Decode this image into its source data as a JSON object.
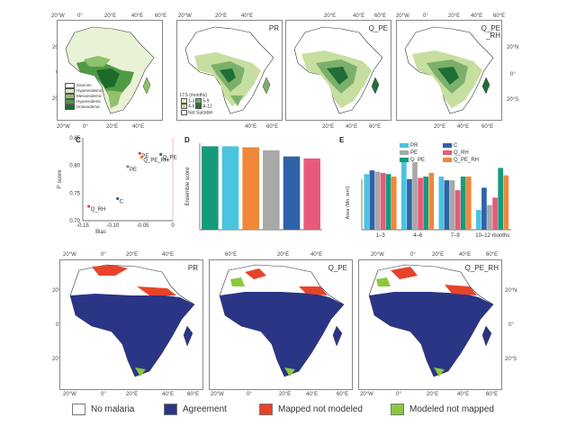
{
  "panels": {
    "a": {
      "letter": "A"
    },
    "b": {
      "letter": "B",
      "label": "PR"
    },
    "b2": {
      "label": "Q_PE"
    },
    "b3": {
      "label": "Q_PE\n_RH"
    },
    "c": {
      "letter": "C"
    },
    "d": {
      "letter": "D"
    },
    "e": {
      "letter": "E"
    },
    "f": {
      "letter": "F",
      "label": "PR"
    },
    "f2": {
      "label": "Q_PE"
    },
    "f3": {
      "label": "Q_PE_RH"
    }
  },
  "coords": {
    "top_lon": [
      "20°W",
      "0°",
      "20°E",
      "40°E",
      "60°E"
    ],
    "top_lon_bottom": [
      "20°W",
      "0°",
      "20°E",
      "40°E",
      "60°E"
    ],
    "lat": [
      "20°N",
      "0°",
      "20°S"
    ],
    "f_lon": [
      "20°W",
      "0°",
      "20°E",
      "40°E",
      "60°E"
    ],
    "f_lon2": [
      "20°E",
      "40°E"
    ],
    "f_lat": [
      "20°N",
      "0°",
      "20°S"
    ]
  },
  "legend_a": {
    "items": [
      {
        "label": "Sources",
        "color": "#ffffff"
      },
      {
        "label": "Hyperendemic",
        "color": "#1b6b2a"
      },
      {
        "label": "Mesoendemic",
        "color": "#4f9a45"
      },
      {
        "label": "Hypoendemic",
        "color": "#8fc06a"
      },
      {
        "label": "Holoendemic",
        "color": "#d6e9b5"
      }
    ]
  },
  "legend_lts": {
    "title": "LTS (months)",
    "r1a": "1-3",
    "r1b": "5-9",
    "r2a": "4-6",
    "r2b": "A-12",
    "r3": "Not Suitable",
    "colors": [
      "#f3ecc6",
      "#7bb06a",
      "#c6dea0",
      "#1f6e36",
      "#ffffff"
    ]
  },
  "chart_data": [
    {
      "panel": "C",
      "type": "scatter",
      "xlabel": "Bias",
      "ylabel": "F' score",
      "xlim": [
        -0.15,
        0.0
      ],
      "ylim": [
        0.7,
        0.85
      ],
      "xticks": [
        "-0.15",
        "-0.10",
        "-0.05",
        "0"
      ],
      "yticks": [
        "0.70",
        "0.75",
        "0.80",
        "0.85"
      ],
      "points": [
        {
          "label": "Q_PE",
          "x": -0.02,
          "y": 0.82,
          "color": "#2a7a5a"
        },
        {
          "label": "PE",
          "x": -0.055,
          "y": 0.822,
          "color": "#d04040"
        },
        {
          "label": "Q_PE_RH",
          "x": -0.052,
          "y": 0.815,
          "color": "#e08030"
        },
        {
          "label": "PE",
          "x": -0.075,
          "y": 0.798,
          "color": "#888888"
        },
        {
          "label": "C",
          "x": -0.092,
          "y": 0.74,
          "color": "#3060a0"
        },
        {
          "label": "Q_RH",
          "x": -0.14,
          "y": 0.726,
          "color": "#d04060"
        }
      ]
    },
    {
      "panel": "D",
      "type": "bar",
      "ylabel": "Ensemble score",
      "categories": [
        "Q_PE",
        "PR",
        "Q_PE_RH",
        "PE",
        "C",
        "Q_RH"
      ],
      "values": [
        0.82,
        0.82,
        0.81,
        0.78,
        0.72,
        0.7
      ],
      "colors": [
        "#169a7c",
        "#4cc3e0",
        "#f0873a",
        "#a8a8a8",
        "#2f62a8",
        "#e85a7a"
      ],
      "ylim": [
        0,
        0.85
      ]
    },
    {
      "panel": "E",
      "type": "bar",
      "ylabel": "Area (Mn. km²)",
      "categories": [
        "1–3",
        "4–6",
        "7–9",
        "10–12 months"
      ],
      "series": [
        {
          "name": "PR",
          "color": "#4cc3e0",
          "values": [
            4.5,
            5.8,
            4.3,
            1.6
          ]
        },
        {
          "name": "C",
          "color": "#2f62a8",
          "values": [
            4.8,
            4.1,
            4.0,
            3.4
          ]
        },
        {
          "name": "PE",
          "color": "#a8a8a8",
          "values": [
            4.7,
            5.4,
            4.0,
            2.0
          ]
        },
        {
          "name": "Q_RH",
          "color": "#e85a7a",
          "values": [
            4.6,
            4.2,
            3.2,
            2.6
          ]
        },
        {
          "name": "Q_PE",
          "color": "#169a7c",
          "values": [
            4.5,
            4.3,
            4.3,
            5.0
          ]
        },
        {
          "name": "Q_PE_RH",
          "color": "#f0873a",
          "values": [
            4.3,
            4.6,
            4.3,
            4.4
          ]
        }
      ],
      "ylim": [
        0,
        7
      ]
    }
  ],
  "bottom_legend": {
    "items": [
      {
        "label": "No malaria",
        "color": "#ffffff"
      },
      {
        "label": "Agreement",
        "color": "#2a3585"
      },
      {
        "label": "Mapped not modeled",
        "color": "#e8432a"
      },
      {
        "label": "Modeled not mapped",
        "color": "#8cc83e"
      }
    ]
  }
}
